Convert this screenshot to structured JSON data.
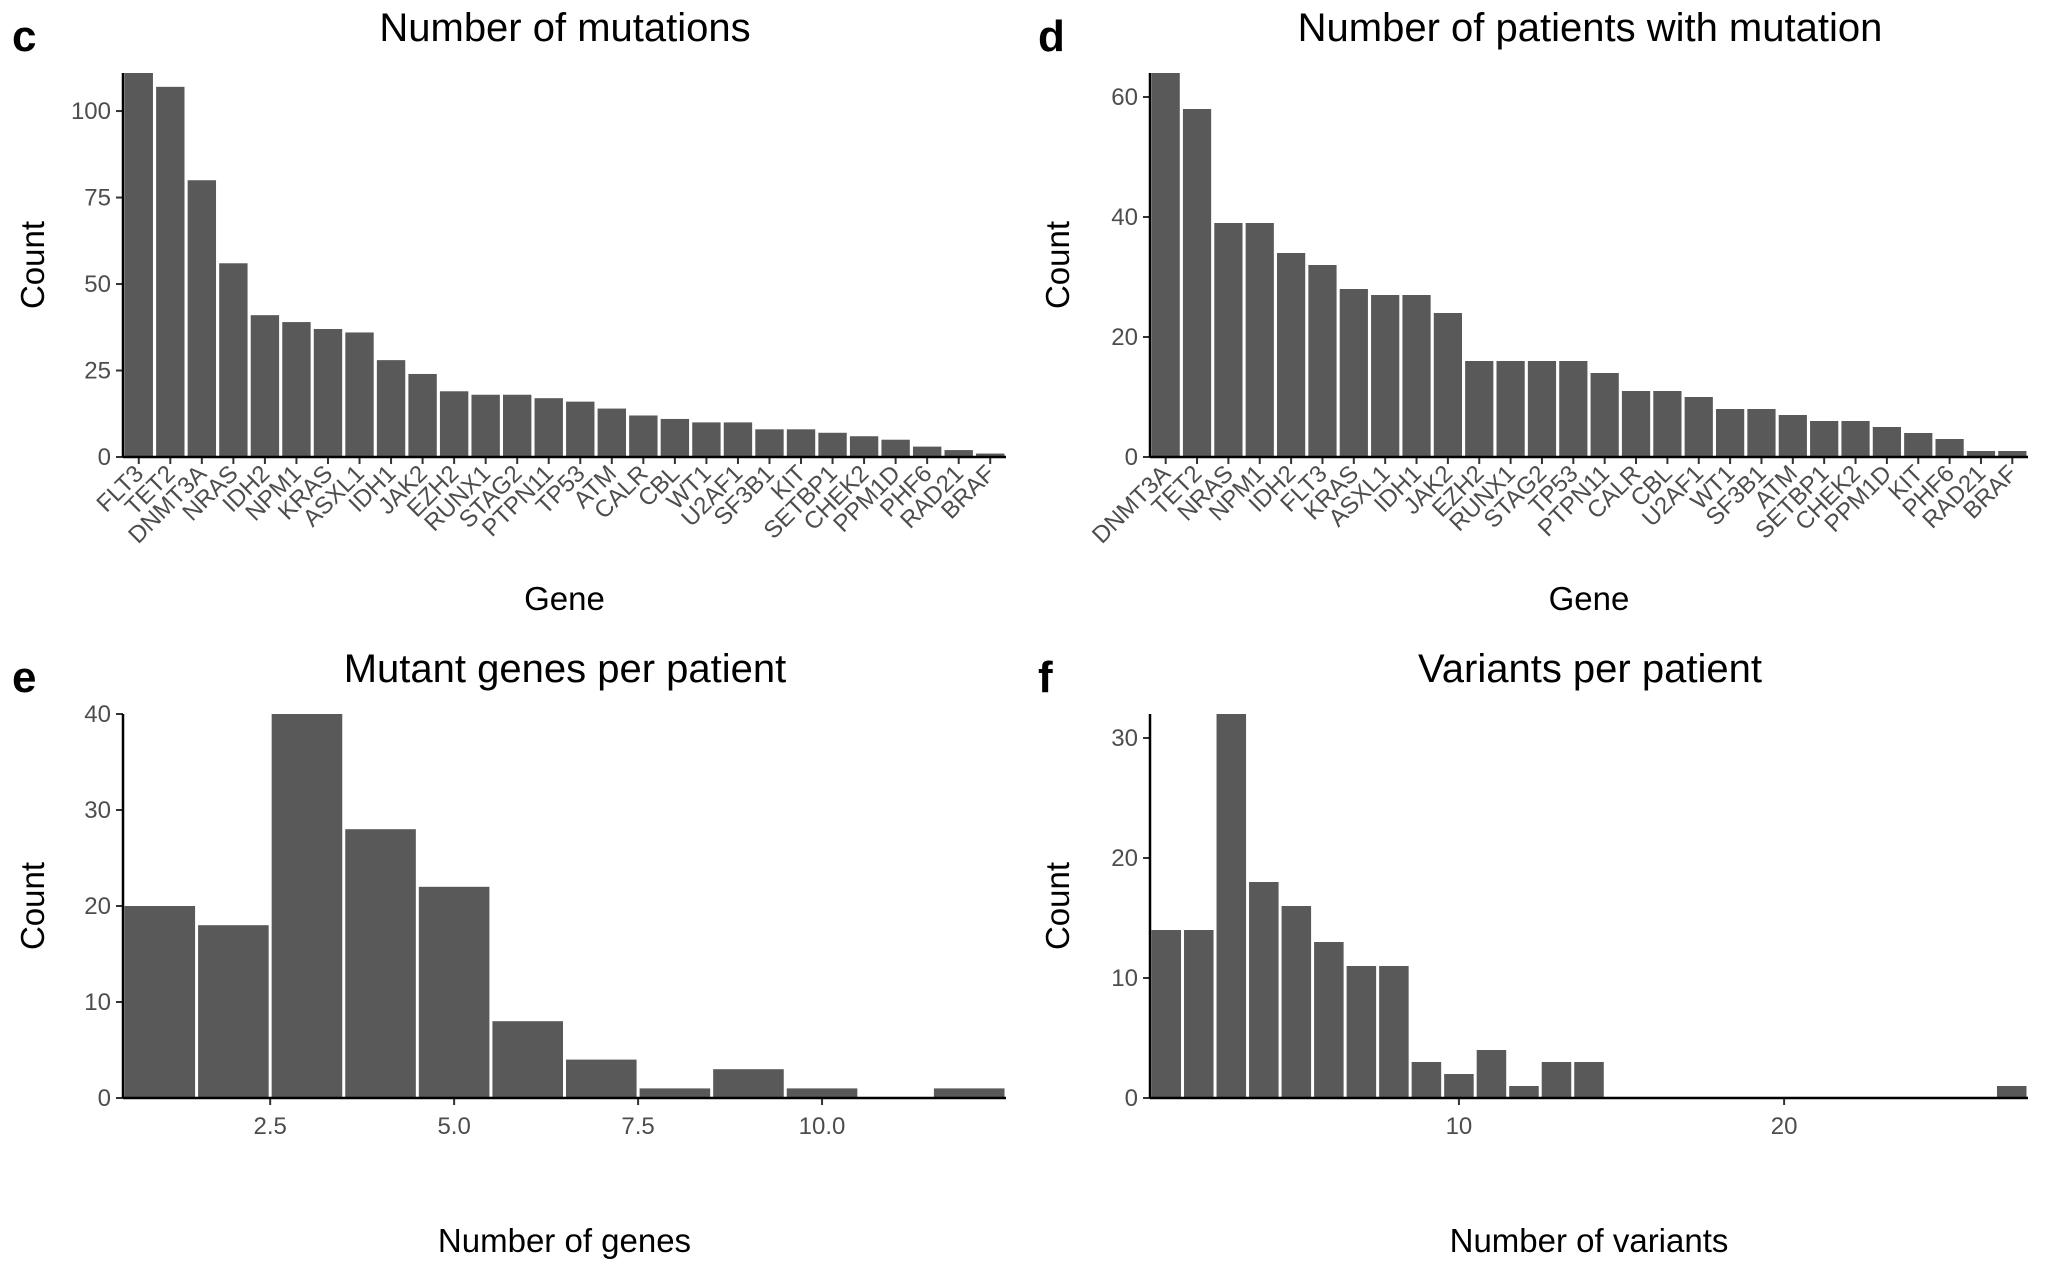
{
  "chart_data": [
    {
      "id": "c",
      "panel_letter": "c",
      "type": "bar",
      "title": "Number of mutations",
      "xlabel": "Gene",
      "ylabel": "Count",
      "categories": [
        "FLT3",
        "TET2",
        "DNMT3A",
        "NRAS",
        "IDH2",
        "NPM1",
        "KRAS",
        "ASXL1",
        "IDH1",
        "JAK2",
        "EZH2",
        "RUNX1",
        "STAG2",
        "PTPN11",
        "TP53",
        "ATM",
        "CALR",
        "CBL",
        "WT1",
        "U2AF1",
        "SF3B1",
        "KIT",
        "SETBP1",
        "CHEK2",
        "PPM1D",
        "PHF6",
        "RAD21",
        "BRAF"
      ],
      "values": [
        111,
        107,
        80,
        56,
        41,
        39,
        37,
        36,
        28,
        24,
        19,
        18,
        18,
        17,
        16,
        14,
        12,
        11,
        10,
        10,
        8,
        8,
        7,
        6,
        5,
        3,
        2,
        1
      ],
      "ylim": [
        0,
        111
      ],
      "yticks": [
        0,
        25,
        50,
        75,
        100
      ],
      "ytick_labels": [
        "0",
        "25",
        "50",
        "75",
        "100"
      ],
      "grid": false,
      "bar_color": "#595959"
    },
    {
      "id": "d",
      "panel_letter": "d",
      "type": "bar",
      "title": "Number of patients with mutation",
      "xlabel": "Gene",
      "ylabel": "Count",
      "categories": [
        "DNMT3A",
        "TET2",
        "NRAS",
        "NPM1",
        "IDH2",
        "FLT3",
        "KRAS",
        "ASXL1",
        "IDH1",
        "JAK2",
        "EZH2",
        "RUNX1",
        "STAG2",
        "TP53",
        "PTPN11",
        "CALR",
        "CBL",
        "U2AF1",
        "WT1",
        "SF3B1",
        "ATM",
        "SETBP1",
        "CHEK2",
        "PPM1D",
        "KIT",
        "PHF6",
        "RAD21",
        "BRAF"
      ],
      "values": [
        64,
        58,
        39,
        39,
        34,
        32,
        28,
        27,
        27,
        24,
        16,
        16,
        16,
        16,
        14,
        11,
        11,
        10,
        8,
        8,
        7,
        6,
        6,
        5,
        4,
        3,
        1,
        1
      ],
      "ylim": [
        0,
        64
      ],
      "yticks": [
        0,
        20,
        40,
        60
      ],
      "ytick_labels": [
        "0",
        "20",
        "40",
        "60"
      ],
      "grid": false,
      "bar_color": "#595959"
    },
    {
      "id": "e",
      "panel_letter": "e",
      "type": "histogram",
      "title": "Mutant genes per patient",
      "xlabel": "Number of genes",
      "ylabel": "Count",
      "bin_centers": [
        1,
        2,
        3,
        4,
        5,
        6,
        7,
        8,
        9,
        10,
        11,
        12
      ],
      "values": [
        20,
        18,
        40,
        28,
        22,
        8,
        4,
        1,
        3,
        1,
        0,
        1
      ],
      "xlim": [
        0.5,
        12.5
      ],
      "ylim": [
        0,
        40
      ],
      "xticks": [
        2.5,
        5.0,
        7.5,
        10.0
      ],
      "xtick_labels": [
        "2.5",
        "5.0",
        "7.5",
        "10.0"
      ],
      "yticks": [
        0,
        10,
        20,
        30,
        40
      ],
      "ytick_labels": [
        "0",
        "10",
        "20",
        "30",
        "40"
      ],
      "grid": false,
      "bar_color": "#595959"
    },
    {
      "id": "f",
      "panel_letter": "f",
      "type": "histogram",
      "title": "Variants per patient",
      "xlabel": "Number of variants",
      "ylabel": "Count",
      "bin_centers": [
        1,
        2,
        3,
        4,
        5,
        6,
        7,
        8,
        9,
        10,
        11,
        12,
        13,
        14,
        15,
        16,
        17,
        18,
        19,
        20,
        21,
        22,
        23,
        24,
        25,
        26,
        27
      ],
      "values": [
        14,
        14,
        32,
        18,
        16,
        13,
        11,
        11,
        3,
        2,
        4,
        1,
        3,
        3,
        0,
        0,
        0,
        0,
        0,
        0,
        0,
        0,
        0,
        0,
        0,
        0,
        1
      ],
      "xlim": [
        0.5,
        27.5
      ],
      "ylim": [
        0,
        32
      ],
      "xticks": [
        10,
        20
      ],
      "xtick_labels": [
        "10",
        "20"
      ],
      "yticks": [
        0,
        10,
        20,
        30
      ],
      "ytick_labels": [
        "0",
        "10",
        "20",
        "30"
      ],
      "grid": false,
      "bar_color": "#595959"
    }
  ]
}
